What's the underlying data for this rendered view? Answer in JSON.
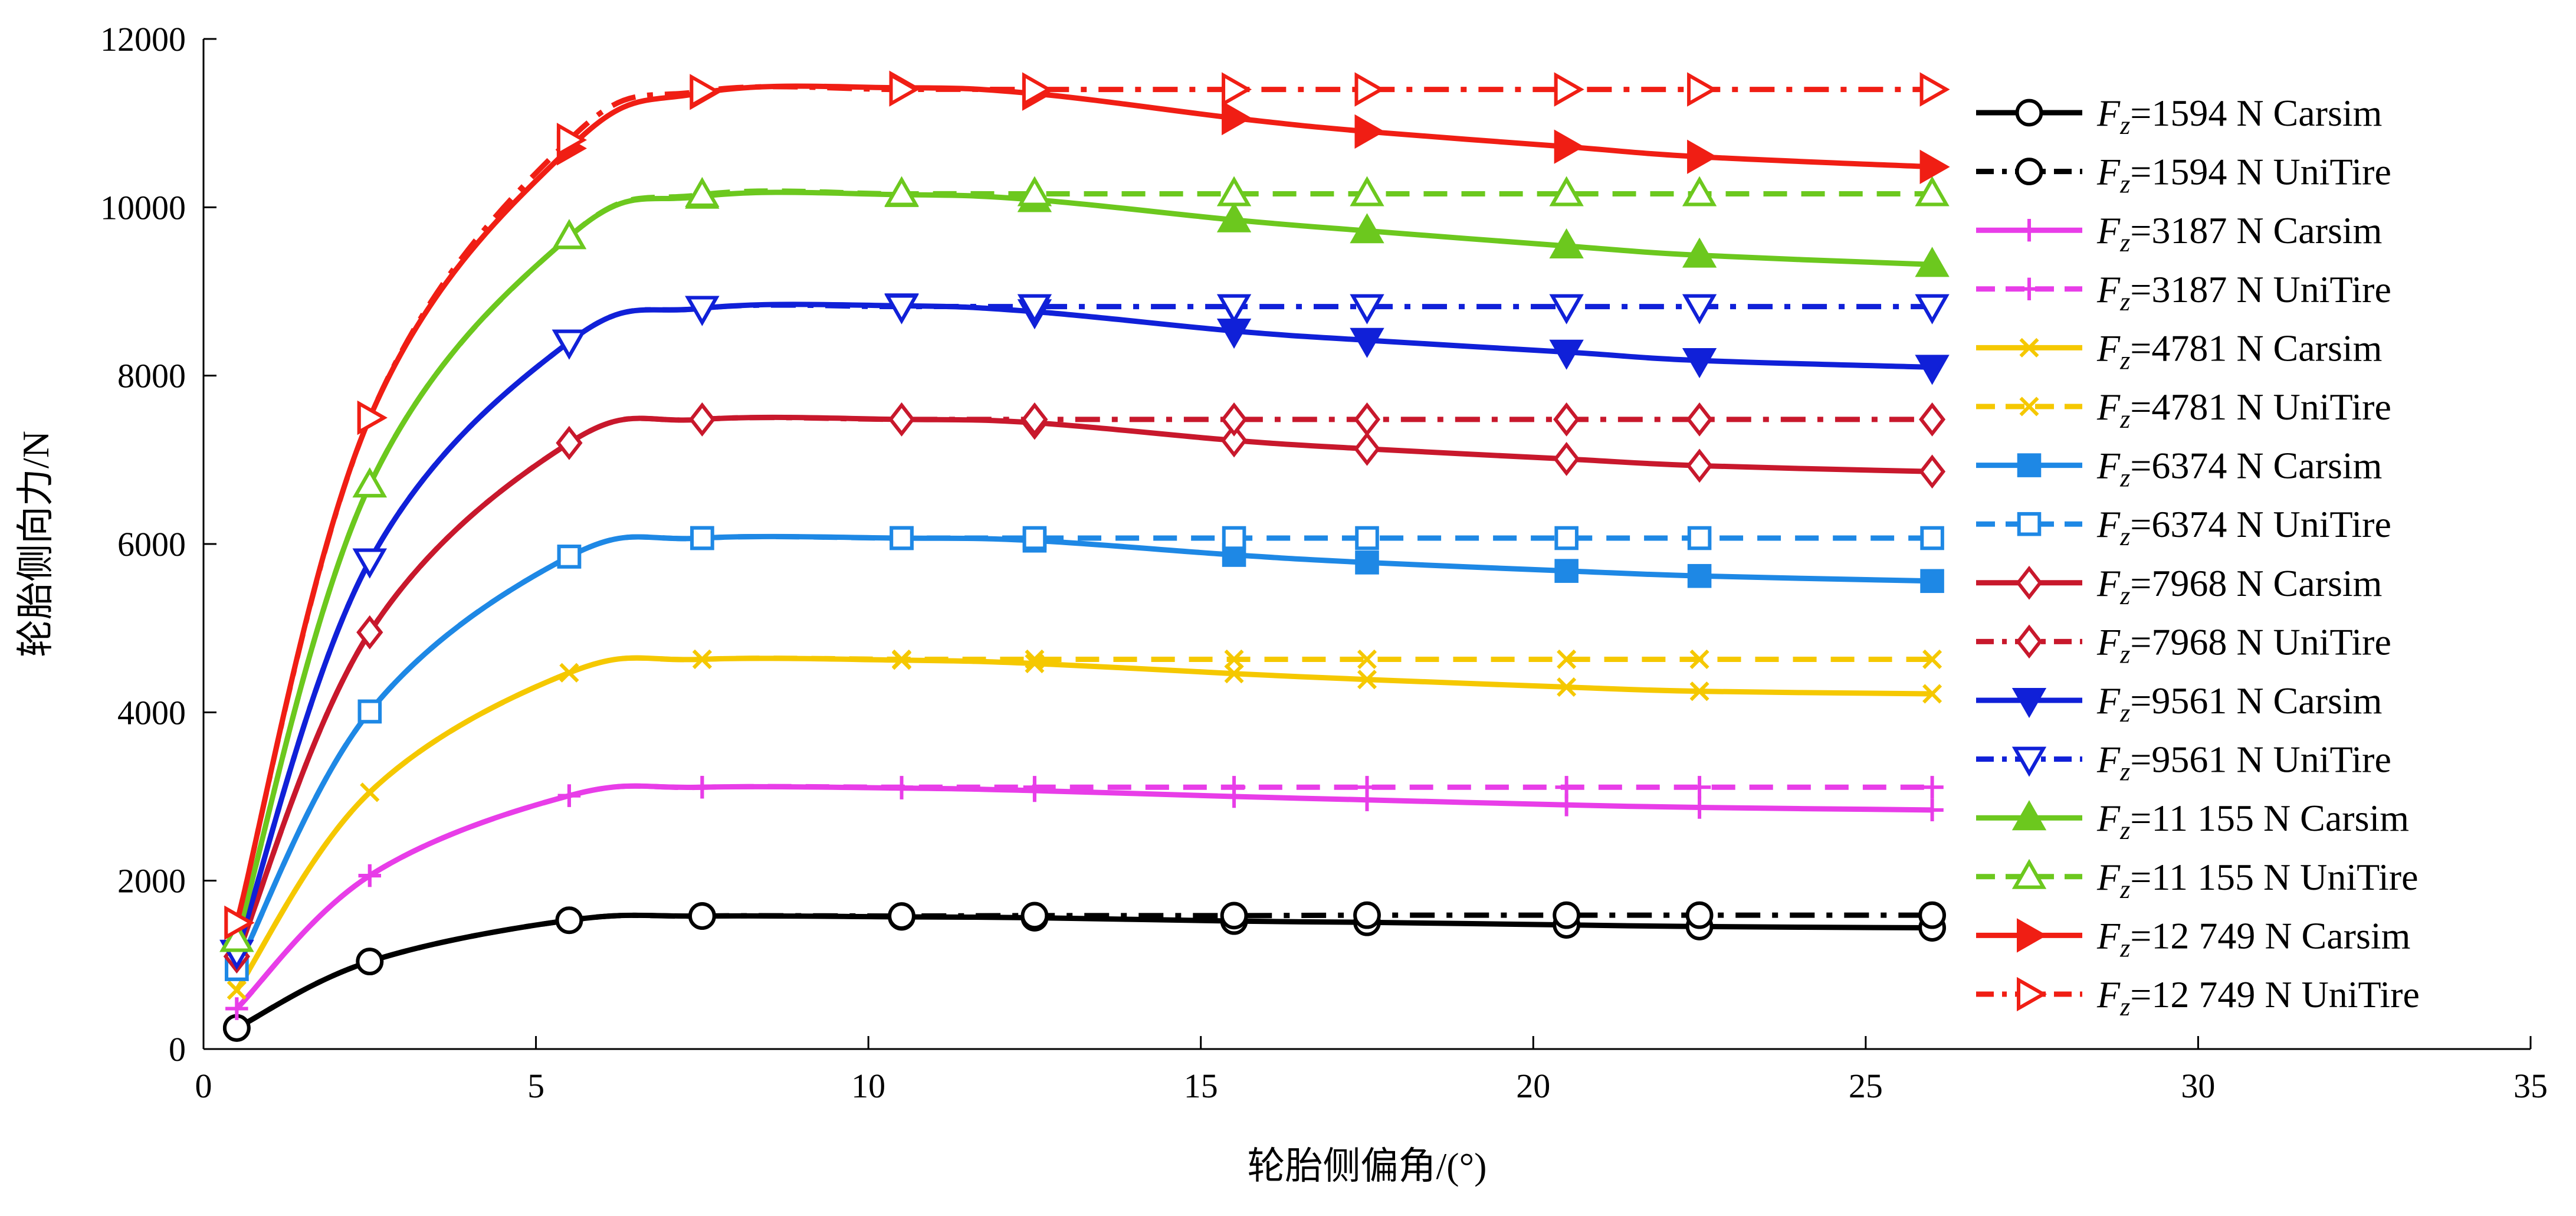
{
  "chart_data": {
    "type": "line",
    "title": "",
    "xlabel": "轮胎侧偏角/(°)",
    "ylabel": "轮胎侧向力/N",
    "xlim": [
      0,
      35
    ],
    "ylim": [
      0,
      12000
    ],
    "x_ticks": [
      0,
      5,
      10,
      15,
      20,
      25,
      30,
      35
    ],
    "y_ticks": [
      0,
      2000,
      4000,
      6000,
      8000,
      10000,
      12000
    ],
    "grid": false,
    "legend_position": "right",
    "x": [
      0.5,
      2.5,
      5.5,
      7.5,
      10.5,
      12.5,
      15.5,
      17.5,
      20.5,
      22.5,
      26
    ],
    "series": [
      {
        "name": "Fz=1594 N Carsim",
        "legend_prefix": "F",
        "legend_sub": "z",
        "legend_rest": "=1594 N Carsim",
        "color": "#000000",
        "dash": "solid",
        "marker": "circle",
        "marker_fill": "none",
        "values": [
          250,
          1040,
          1530,
          1580,
          1570,
          1560,
          1520,
          1505,
          1475,
          1455,
          1440
        ]
      },
      {
        "name": "Fz=1594 N UniTire",
        "legend_prefix": "F",
        "legend_sub": "z",
        "legend_rest": "=1594 N UniTire",
        "color": "#000000",
        "dash": "dashdot",
        "marker": "circle",
        "marker_fill": "none",
        "values": [
          250,
          1040,
          1530,
          1580,
          1580,
          1585,
          1585,
          1590,
          1590,
          1590,
          1590
        ]
      },
      {
        "name": "Fz=3187 N Carsim",
        "legend_prefix": "F",
        "legend_sub": "z",
        "legend_rest": "=3187 N Carsim",
        "color": "#e83de8",
        "dash": "solid",
        "marker": "plus",
        "marker_fill": "none",
        "values": [
          480,
          2060,
          3010,
          3110,
          3100,
          3070,
          3000,
          2960,
          2900,
          2870,
          2840
        ]
      },
      {
        "name": "Fz=3187 N UniTire",
        "legend_prefix": "F",
        "legend_sub": "z",
        "legend_rest": "=3187 N UniTire",
        "color": "#e83de8",
        "dash": "dashed",
        "marker": "plus",
        "marker_fill": "none",
        "values": [
          480,
          2060,
          3010,
          3110,
          3110,
          3110,
          3110,
          3110,
          3110,
          3110,
          3110
        ]
      },
      {
        "name": "Fz=4781 N Carsim",
        "legend_prefix": "F",
        "legend_sub": "z",
        "legend_rest": "=4781 N Carsim",
        "color": "#f5c800",
        "dash": "solid",
        "marker": "x",
        "marker_fill": "none",
        "values": [
          700,
          3050,
          4470,
          4630,
          4620,
          4580,
          4460,
          4390,
          4300,
          4250,
          4220
        ]
      },
      {
        "name": "Fz=4781 N UniTire",
        "legend_prefix": "F",
        "legend_sub": "z",
        "legend_rest": "=4781 N UniTire",
        "color": "#f5c800",
        "dash": "dashed",
        "marker": "x",
        "marker_fill": "none",
        "values": [
          700,
          3050,
          4470,
          4630,
          4630,
          4630,
          4630,
          4630,
          4630,
          4630,
          4630
        ]
      },
      {
        "name": "Fz=6374 N Carsim",
        "legend_prefix": "F",
        "legend_sub": "z",
        "legend_rest": "=6374 N Carsim",
        "color": "#1e88e5",
        "dash": "solid",
        "marker": "square",
        "marker_fill": "filled",
        "values": [
          950,
          4010,
          5850,
          6070,
          6070,
          6040,
          5870,
          5780,
          5680,
          5620,
          5560
        ]
      },
      {
        "name": "Fz=6374 N UniTire",
        "legend_prefix": "F",
        "legend_sub": "z",
        "legend_rest": "=6374 N UniTire",
        "color": "#1e88e5",
        "dash": "dashed",
        "marker": "square",
        "marker_fill": "none",
        "values": [
          950,
          4010,
          5850,
          6070,
          6070,
          6070,
          6070,
          6070,
          6070,
          6070,
          6070
        ]
      },
      {
        "name": "Fz=7968 N Carsim",
        "legend_prefix": "F",
        "legend_sub": "z",
        "legend_rest": "=7968 N Carsim",
        "color": "#c8182c",
        "dash": "solid",
        "marker": "diamond",
        "marker_fill": "none",
        "values": [
          1100,
          4950,
          7200,
          7480,
          7480,
          7440,
          7230,
          7130,
          7010,
          6930,
          6860
        ]
      },
      {
        "name": "Fz=7968 N UniTire",
        "legend_prefix": "F",
        "legend_sub": "z",
        "legend_rest": "=7968 N UniTire",
        "color": "#c8182c",
        "dash": "dashdot",
        "marker": "diamond",
        "marker_fill": "none",
        "values": [
          1100,
          4950,
          7200,
          7480,
          7480,
          7480,
          7480,
          7480,
          7480,
          7480,
          7480
        ]
      },
      {
        "name": "Fz=9561 N Carsim",
        "legend_prefix": "F",
        "legend_sub": "z",
        "legend_rest": "=9561 N Carsim",
        "color": "#1020d8",
        "dash": "solid",
        "marker": "tri-down",
        "marker_fill": "filled",
        "values": [
          1150,
          5800,
          8400,
          8800,
          8830,
          8760,
          8530,
          8420,
          8280,
          8180,
          8100
        ]
      },
      {
        "name": "Fz=9561 N UniTire",
        "legend_prefix": "F",
        "legend_sub": "z",
        "legend_rest": "=9561 N UniTire",
        "color": "#1020d8",
        "dash": "dashdot",
        "marker": "tri-down",
        "marker_fill": "none",
        "values": [
          1150,
          5800,
          8400,
          8800,
          8820,
          8820,
          8820,
          8820,
          8820,
          8820,
          8820
        ]
      },
      {
        "name": "Fz=11 155 N Carsim",
        "legend_prefix": "F",
        "legend_sub": "z",
        "legend_rest": "=11 155 N Carsim",
        "color": "#6cc81e",
        "dash": "solid",
        "marker": "tri-up",
        "marker_fill": "filled",
        "values": [
          1300,
          6700,
          9650,
          10130,
          10150,
          10090,
          9850,
          9720,
          9540,
          9430,
          9320
        ]
      },
      {
        "name": "Fz=11 155 N UniTire",
        "legend_prefix": "F",
        "legend_sub": "z",
        "legend_rest": "=11 155 N UniTire",
        "color": "#6cc81e",
        "dash": "dashed",
        "marker": "tri-up",
        "marker_fill": "none",
        "values": [
          1300,
          6700,
          9650,
          10150,
          10160,
          10160,
          10160,
          10160,
          10160,
          10160,
          10160
        ]
      },
      {
        "name": "Fz=12 749 N Carsim",
        "legend_prefix": "F",
        "legend_sub": "z",
        "legend_rest": "=12 749 N Carsim",
        "color": "#f01e14",
        "dash": "solid",
        "marker": "tri-right",
        "marker_fill": "filled",
        "values": [
          1500,
          7500,
          10700,
          11360,
          11420,
          11350,
          11060,
          10900,
          10720,
          10600,
          10480
        ]
      },
      {
        "name": "Fz=12 749 N UniTire",
        "legend_prefix": "F",
        "legend_sub": "z",
        "legend_rest": "=12 749 N UniTire",
        "color": "#f01e14",
        "dash": "dashdot",
        "marker": "tri-right",
        "marker_fill": "none",
        "values": [
          1500,
          7500,
          10800,
          11380,
          11400,
          11400,
          11400,
          11400,
          11400,
          11400,
          11400
        ]
      }
    ]
  }
}
